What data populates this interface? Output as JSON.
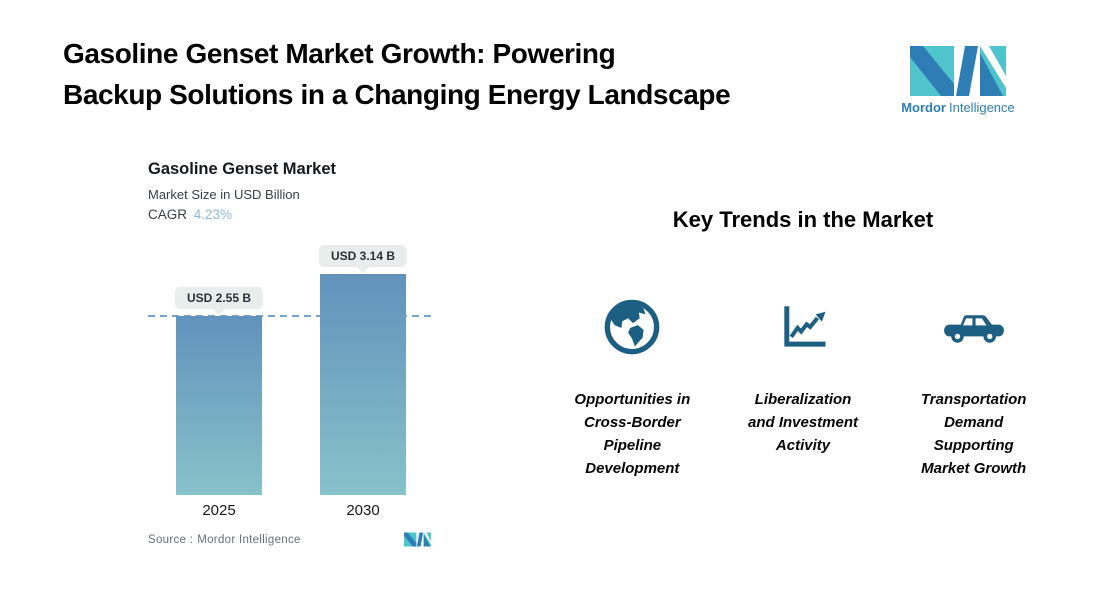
{
  "header": {
    "title_line1": "Gasoline Genset Market Growth: Powering",
    "title_line2": "Backup Solutions in a Changing Energy Landscape"
  },
  "brand": {
    "name_bold": "Mordor",
    "name_regular": "Intelligence",
    "teal": "#4FC4CC",
    "blue": "#2E7EB5"
  },
  "chart_data": {
    "type": "bar",
    "title": "Gasoline Genset Market",
    "subtitle": "Market Size in USD Billion",
    "cagr_label": "CAGR",
    "cagr_value": "4.23%",
    "categories": [
      "2025",
      "2030"
    ],
    "values": [
      2.55,
      3.14
    ],
    "value_labels": [
      "USD 2.55 B",
      "USD 3.14 B"
    ],
    "unit": "USD Billion",
    "ylim": [
      0,
      3.14
    ],
    "reference_line_at": 2.55,
    "grid": "off",
    "source_label": "Source :",
    "source_value": "Mordor Intelligence",
    "colors": {
      "bar_top": "#6292BC",
      "bar_bottom": "#87C2CA",
      "dashed_line": "#74A3CF",
      "value_label_bg": "#E8EEEC",
      "cagr_value": "#8CB7DC"
    }
  },
  "trends": {
    "heading": "Key Trends in the Market",
    "icon_color": "#1D5F82",
    "items": [
      {
        "icon": "globe-icon",
        "label": "Opportunities in Cross-Border Pipeline Development",
        "lines": [
          "Opportunities in",
          "Cross-Border",
          "Pipeline",
          "Development"
        ]
      },
      {
        "icon": "line-chart-icon",
        "label": "Liberalization and Investment Activity",
        "lines": [
          "Liberalization",
          "and Investment",
          "Activity"
        ]
      },
      {
        "icon": "car-icon",
        "label": "Transportation Demand Supporting Market Growth",
        "lines": [
          "Transportation",
          "Demand",
          "Supporting",
          "Market Growth"
        ]
      }
    ]
  }
}
